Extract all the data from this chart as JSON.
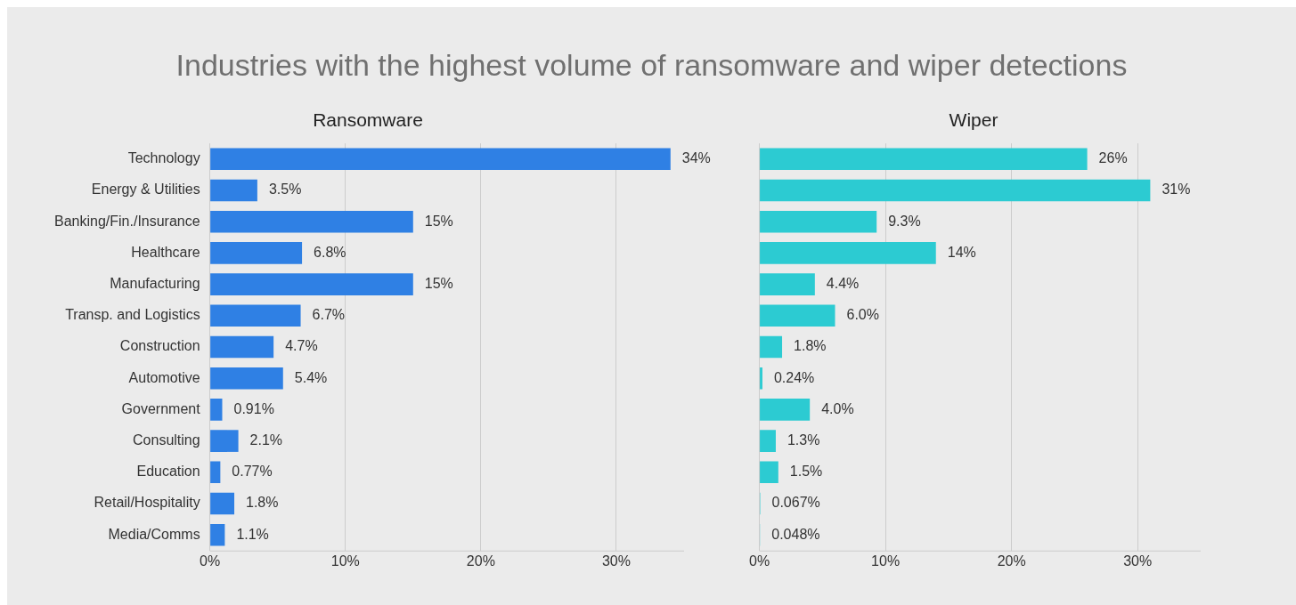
{
  "chart_data": [
    {
      "type": "other",
      "title": "Industries with the highest volume of ransomware and wiper detections"
    },
    {
      "type": "bar",
      "orientation": "horizontal",
      "title": "Ransomware",
      "categories": [
        "Technology",
        "Energy & Utilities",
        "Banking/Fin./Insurance",
        "Healthcare",
        "Manufacturing",
        "Transp. and Logistics",
        "Construction",
        "Automotive",
        "Government",
        "Consulting",
        "Education",
        "Retail/Hospitality",
        "Media/Comms"
      ],
      "values": [
        34,
        3.5,
        15,
        6.8,
        15,
        6.7,
        4.7,
        5.4,
        0.91,
        2.1,
        0.77,
        1.8,
        1.1
      ],
      "value_labels": [
        "34%",
        "3.5%",
        "15%",
        "6.8%",
        "15%",
        "6.7%",
        "4.7%",
        "5.4%",
        "0.91%",
        "2.1%",
        "0.77%",
        "1.8%",
        "1.1%"
      ],
      "color": "#2f80e4",
      "xlim": [
        0,
        35
      ],
      "xticks": [
        {
          "value": 0,
          "label": "0%"
        },
        {
          "value": 10,
          "label": "10%"
        },
        {
          "value": 20,
          "label": "20%"
        },
        {
          "value": 30,
          "label": "30%"
        }
      ],
      "grid": "x"
    },
    {
      "type": "bar",
      "orientation": "horizontal",
      "title": "Wiper",
      "categories": [
        null,
        null,
        null,
        null,
        null,
        null,
        null,
        null,
        null,
        null,
        null,
        null,
        null
      ],
      "values": [
        26,
        31,
        9.3,
        14,
        4.4,
        6.0,
        1.8,
        0.24,
        4.0,
        1.3,
        1.5,
        0.067,
        0.048
      ],
      "value_labels": [
        "26%",
        "31%",
        "9.3%",
        "14%",
        "4.4%",
        "6.0%",
        "1.8%",
        "0.24%",
        "4.0%",
        "1.3%",
        "1.5%",
        "0.067%",
        "0.048%"
      ],
      "color": "#2ccbd2",
      "xlim": [
        0,
        35
      ],
      "xticks": [
        {
          "value": 0,
          "label": "0%"
        },
        {
          "value": 10,
          "label": "10%"
        },
        {
          "value": 20,
          "label": "20%"
        },
        {
          "value": 30,
          "label": "30%"
        }
      ],
      "grid": "x"
    }
  ]
}
